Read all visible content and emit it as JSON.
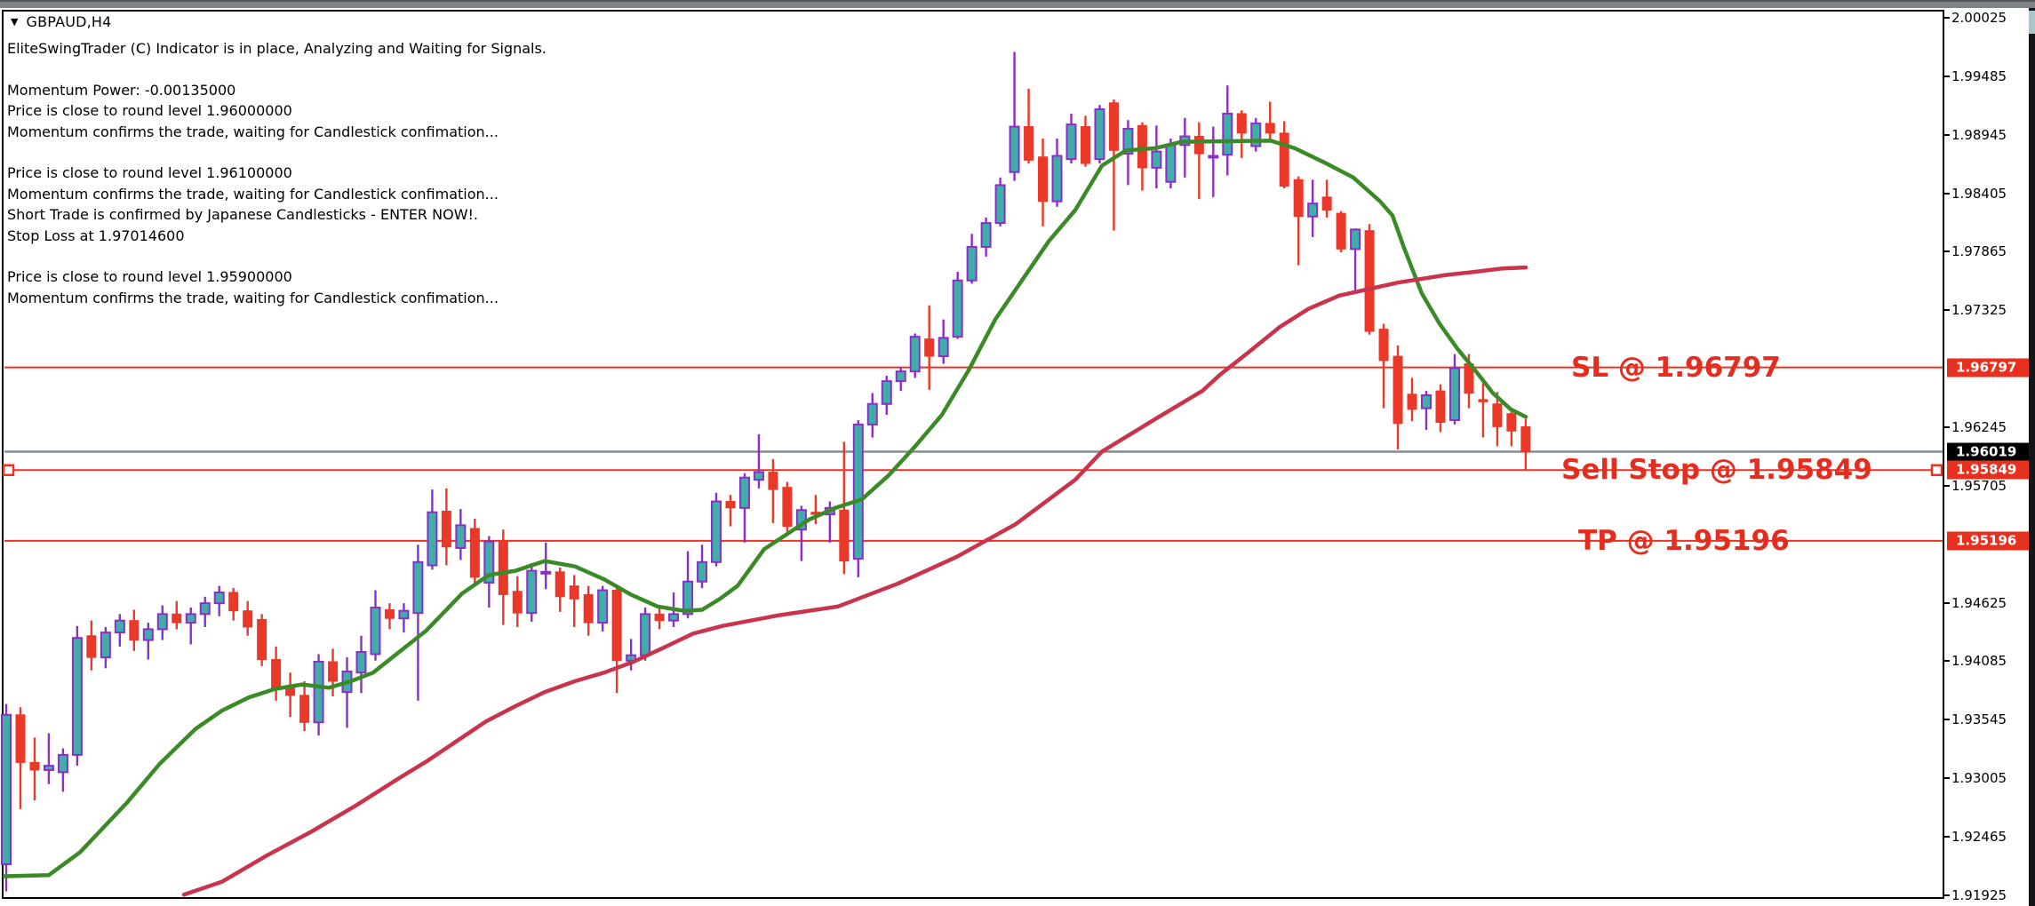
{
  "window": {
    "symbol_label": "GBPAUD,H4",
    "dropdown_icon": "down-triangle-icon"
  },
  "indicator_comment": {
    "lines": [
      "EliteSwingTrader (C) Indicator is in place, Analyzing and Waiting for Signals.",
      "",
      "Momentum Power: -0.00135000",
      "Price is close to round level 1.96000000",
      "Momentum confirms the trade, waiting for Candlestick confimation...",
      "",
      "Price is close to round level 1.96100000",
      "Momentum confirms the trade, waiting for Candlestick confimation...",
      "Short Trade is confirmed by Japanese Candlesticks - ENTER NOW!.",
      "Stop Loss at 1.97014600",
      "",
      "Price is close to round level 1.95900000",
      "Momentum confirms the trade, waiting for Candlestick confimation..."
    ]
  },
  "colors": {
    "bull_fill": "#3fada8",
    "bull_border": "#8b2fc9",
    "bear": "#ea3829",
    "ma_fast": "#3a8b28",
    "ma_slow": "#c9334b",
    "trade_line": "#ee3123",
    "current_price_line": "#7f8d98",
    "badge_red": "#e8301f",
    "badge_black": "#000000",
    "axis_line": "#000000",
    "label_red": "#e42d1e"
  },
  "chart_data": {
    "type": "candlestick",
    "symbol": "GBPAUD",
    "timeframe": "H4",
    "title": "GBPAUD,H4",
    "grid": false,
    "y_axis": {
      "side": "right",
      "min": 1.91925,
      "max": 2.00025,
      "tick_labels": [
        "2.00025",
        "1.99485",
        "1.98945",
        "1.98405",
        "1.97865",
        "1.97325",
        "1.96245",
        "1.95705",
        "1.94625",
        "1.94085",
        "1.93545",
        "1.93005",
        "1.92465",
        "1.91925"
      ]
    },
    "current_price": 1.96019,
    "price_badges": [
      {
        "value": "1.96797",
        "price": 1.96797,
        "type": "red"
      },
      {
        "value": "1.96019",
        "price": 1.96019,
        "type": "black"
      },
      {
        "value": "1.95849",
        "price": 1.95849,
        "type": "red"
      },
      {
        "value": "1.95196",
        "price": 1.95196,
        "type": "red"
      }
    ],
    "h_lines": [
      {
        "name": "stop-loss-line",
        "price": 1.96797,
        "style": "red"
      },
      {
        "name": "current-price-line",
        "price": 1.96019,
        "style": "gray"
      },
      {
        "name": "sell-stop-line",
        "price": 1.95849,
        "style": "red",
        "handles": true
      },
      {
        "name": "take-profit-line",
        "price": 1.95196,
        "style": "red"
      }
    ],
    "trade_labels": [
      {
        "text": "SL @ 1.96797",
        "price": 1.96797,
        "x": 1768,
        "font_px": 31
      },
      {
        "text": "Sell Stop @ 1.95849",
        "price": 1.95849,
        "x": 1757,
        "font_px": 31
      },
      {
        "text": "TP @ 1.95196",
        "price": 1.95196,
        "x": 1776,
        "font_px": 31
      }
    ],
    "candles_ohlc": [
      [
        1.9221,
        1.9369,
        1.9196,
        1.9359
      ],
      [
        1.9359,
        1.9366,
        1.9272,
        1.9315
      ],
      [
        1.9315,
        1.9338,
        1.928,
        1.9308
      ],
      [
        1.9308,
        1.9342,
        1.9295,
        1.9312
      ],
      [
        1.9306,
        1.9328,
        1.9288,
        1.9322
      ],
      [
        1.9322,
        1.9441,
        1.9312,
        1.943
      ],
      [
        1.9432,
        1.9446,
        1.94,
        1.9412
      ],
      [
        1.9412,
        1.944,
        1.9402,
        1.9435
      ],
      [
        1.9435,
        1.9452,
        1.9422,
        1.9446
      ],
      [
        1.9446,
        1.9456,
        1.9418,
        1.9428
      ],
      [
        1.9428,
        1.9444,
        1.941,
        1.9438
      ],
      [
        1.9438,
        1.946,
        1.9428,
        1.9452
      ],
      [
        1.9452,
        1.9464,
        1.9438,
        1.9444
      ],
      [
        1.9444,
        1.9458,
        1.9424,
        1.9452
      ],
      [
        1.9452,
        1.9468,
        1.944,
        1.9462
      ],
      [
        1.9462,
        1.9478,
        1.945,
        1.9472
      ],
      [
        1.9472,
        1.9476,
        1.9446,
        1.9455
      ],
      [
        1.9455,
        1.9464,
        1.9432,
        1.944
      ],
      [
        1.9447,
        1.9452,
        1.9404,
        1.941
      ],
      [
        1.941,
        1.9422,
        1.9372,
        1.9384
      ],
      [
        1.9384,
        1.9398,
        1.9357,
        1.9377
      ],
      [
        1.9377,
        1.939,
        1.9344,
        1.9352
      ],
      [
        1.9352,
        1.9415,
        1.934,
        1.9408
      ],
      [
        1.9408,
        1.942,
        1.9376,
        1.939
      ],
      [
        1.938,
        1.9412,
        1.9347,
        1.9399
      ],
      [
        1.9398,
        1.9432,
        1.9379,
        1.9417
      ],
      [
        1.9415,
        1.9474,
        1.9409,
        1.9458
      ],
      [
        1.9456,
        1.9462,
        1.9438,
        1.9448
      ],
      [
        1.9448,
        1.9462,
        1.9435,
        1.9455
      ],
      [
        1.9453,
        1.9516,
        1.9372,
        1.95
      ],
      [
        1.9497,
        1.9567,
        1.9493,
        1.9546
      ],
      [
        1.9547,
        1.9568,
        1.9497,
        1.9514
      ],
      [
        1.9513,
        1.9549,
        1.9502,
        1.9534
      ],
      [
        1.9531,
        1.954,
        1.948,
        1.9486
      ],
      [
        1.9481,
        1.9524,
        1.9458,
        1.9519
      ],
      [
        1.952,
        1.953,
        1.9442,
        1.947
      ],
      [
        1.9473,
        1.9487,
        1.944,
        1.9453
      ],
      [
        1.9453,
        1.9499,
        1.9445,
        1.9492
      ],
      [
        1.949,
        1.9518,
        1.9475,
        1.9491
      ],
      [
        1.9491,
        1.9495,
        1.9454,
        1.9468
      ],
      [
        1.9478,
        1.9488,
        1.944,
        1.9466
      ],
      [
        1.947,
        1.9478,
        1.9432,
        1.9444
      ],
      [
        1.9444,
        1.9478,
        1.9436,
        1.9474
      ],
      [
        1.9474,
        1.9478,
        1.9379,
        1.9409
      ],
      [
        1.9409,
        1.9429,
        1.94,
        1.9414
      ],
      [
        1.9414,
        1.9458,
        1.9409,
        1.9452
      ],
      [
        1.9452,
        1.946,
        1.9438,
        1.9446
      ],
      [
        1.9446,
        1.9472,
        1.944,
        1.9452
      ],
      [
        1.9452,
        1.951,
        1.9448,
        1.9482
      ],
      [
        1.9482,
        1.9516,
        1.9476,
        1.95
      ],
      [
        1.95,
        1.9564,
        1.9496,
        1.9556
      ],
      [
        1.9556,
        1.9562,
        1.9533,
        1.955
      ],
      [
        1.955,
        1.9582,
        1.9518,
        1.9578
      ],
      [
        1.9576,
        1.9618,
        1.9568,
        1.9583
      ],
      [
        1.9583,
        1.9595,
        1.9536,
        1.9567
      ],
      [
        1.9569,
        1.9574,
        1.9528,
        1.9533
      ],
      [
        1.953,
        1.9552,
        1.9501,
        1.9548
      ],
      [
        1.9546,
        1.9562,
        1.9535,
        1.9544
      ],
      [
        1.9544,
        1.9556,
        1.9518,
        1.955
      ],
      [
        1.9548,
        1.9611,
        1.9489,
        1.9501
      ],
      [
        1.9503,
        1.9631,
        1.9486,
        1.9627
      ],
      [
        1.9627,
        1.9656,
        1.9615,
        1.9646
      ],
      [
        1.9646,
        1.9672,
        1.9636,
        1.9667
      ],
      [
        1.9667,
        1.968,
        1.9658,
        1.9676
      ],
      [
        1.9676,
        1.9711,
        1.967,
        1.9708
      ],
      [
        1.9706,
        1.9737,
        1.9659,
        1.969
      ],
      [
        1.969,
        1.9724,
        1.9683,
        1.9707
      ],
      [
        1.9708,
        1.9768,
        1.9706,
        1.976
      ],
      [
        1.976,
        1.9803,
        1.9757,
        1.9791
      ],
      [
        1.9791,
        1.9818,
        1.9782,
        1.9813
      ],
      [
        1.9813,
        1.9855,
        1.981,
        1.9848
      ],
      [
        1.986,
        1.9971,
        1.9852,
        1.9902
      ],
      [
        1.9902,
        1.9937,
        1.9868,
        1.9871
      ],
      [
        1.9874,
        1.9891,
        1.981,
        1.9833
      ],
      [
        1.9833,
        1.9891,
        1.9828,
        1.9875
      ],
      [
        1.9872,
        1.9914,
        1.9868,
        1.9904
      ],
      [
        1.9902,
        1.9912,
        1.9865,
        1.9868
      ],
      [
        1.9872,
        1.9922,
        1.9868,
        1.9918
      ],
      [
        1.9924,
        1.9927,
        1.9806,
        1.988
      ],
      [
        1.9877,
        1.9908,
        1.9848,
        1.99
      ],
      [
        1.9903,
        1.9906,
        1.9843,
        1.9864
      ],
      [
        1.9864,
        1.9903,
        1.9845,
        1.9879
      ],
      [
        1.9851,
        1.9891,
        1.9845,
        1.9885
      ],
      [
        1.9885,
        1.991,
        1.9855,
        1.9893
      ],
      [
        1.9893,
        1.9906,
        1.9835,
        1.9877
      ],
      [
        1.9875,
        1.9902,
        1.9837,
        1.9875
      ],
      [
        1.9876,
        1.994,
        1.9857,
        1.9914
      ],
      [
        1.9914,
        1.9917,
        1.9873,
        1.9896
      ],
      [
        1.9884,
        1.991,
        1.9879,
        1.9905
      ],
      [
        1.9905,
        1.9925,
        1.9889,
        1.9896
      ],
      [
        1.9896,
        1.9907,
        1.9845,
        1.9847
      ],
      [
        1.9853,
        1.9856,
        1.9774,
        1.9819
      ],
      [
        1.9819,
        1.9853,
        1.98,
        1.9831
      ],
      [
        1.9837,
        1.9853,
        1.9818,
        1.9825
      ],
      [
        1.9822,
        1.9824,
        1.9786,
        1.9789
      ],
      [
        1.9789,
        1.9808,
        1.9751,
        1.9807
      ],
      [
        1.9806,
        1.9812,
        1.971,
        1.9713
      ],
      [
        1.9715,
        1.972,
        1.9642,
        1.9686
      ],
      [
        1.969,
        1.97,
        1.9604,
        1.9628
      ],
      [
        1.9655,
        1.967,
        1.963,
        1.9641
      ],
      [
        1.9642,
        1.9658,
        1.9622,
        1.9654
      ],
      [
        1.9658,
        1.9664,
        1.962,
        1.9629
      ],
      [
        1.9631,
        1.9692,
        1.9627,
        1.9679
      ],
      [
        1.9683,
        1.9692,
        1.9642,
        1.9656
      ],
      [
        1.965,
        1.9665,
        1.9615,
        1.9648
      ],
      [
        1.9646,
        1.9657,
        1.9607,
        1.9625
      ],
      [
        1.9637,
        1.9641,
        1.9607,
        1.9621
      ],
      [
        1.9625,
        1.9632,
        1.9585,
        1.9602
      ]
    ],
    "series": [
      {
        "name": "fast-ma-green",
        "type": "line",
        "points": [
          [
            5,
            1.921
          ],
          [
            55,
            1.9211
          ],
          [
            90,
            1.9232
          ],
          [
            143,
            1.9278
          ],
          [
            180,
            1.9314
          ],
          [
            220,
            1.9346
          ],
          [
            250,
            1.9363
          ],
          [
            280,
            1.9375
          ],
          [
            310,
            1.9383
          ],
          [
            340,
            1.9387
          ],
          [
            370,
            1.9384
          ],
          [
            395,
            1.939
          ],
          [
            420,
            1.9398
          ],
          [
            480,
            1.9437
          ],
          [
            520,
            1.9471
          ],
          [
            550,
            1.9488
          ],
          [
            580,
            1.9492
          ],
          [
            613,
            1.9501
          ],
          [
            647,
            1.9496
          ],
          [
            680,
            1.9484
          ],
          [
            710,
            1.947
          ],
          [
            740,
            1.9459
          ],
          [
            770,
            1.9455
          ],
          [
            790,
            1.9456
          ],
          [
            810,
            1.9466
          ],
          [
            830,
            1.9478
          ],
          [
            860,
            1.9512
          ],
          [
            910,
            1.9539
          ],
          [
            940,
            1.955
          ],
          [
            970,
            1.9558
          ],
          [
            1000,
            1.958
          ],
          [
            1030,
            1.9607
          ],
          [
            1060,
            1.9636
          ],
          [
            1090,
            1.9677
          ],
          [
            1120,
            1.9724
          ],
          [
            1150,
            1.976
          ],
          [
            1180,
            1.9796
          ],
          [
            1210,
            1.9825
          ],
          [
            1240,
            1.9866
          ],
          [
            1267,
            1.988
          ],
          [
            1300,
            1.9882
          ],
          [
            1330,
            1.9888
          ],
          [
            1430,
            1.9889
          ],
          [
            1457,
            1.9882
          ],
          [
            1490,
            1.9869
          ],
          [
            1523,
            1.9855
          ],
          [
            1553,
            1.9833
          ],
          [
            1567,
            1.982
          ],
          [
            1580,
            1.979
          ],
          [
            1600,
            1.9748
          ],
          [
            1620,
            1.972
          ],
          [
            1640,
            1.9697
          ],
          [
            1660,
            1.9677
          ],
          [
            1680,
            1.9656
          ],
          [
            1700,
            1.9641
          ],
          [
            1717,
            1.9634
          ]
        ]
      },
      {
        "name": "slow-ma-crimson",
        "type": "line",
        "points": [
          [
            207,
            1.9193
          ],
          [
            250,
            1.9205
          ],
          [
            300,
            1.9229
          ],
          [
            350,
            1.9251
          ],
          [
            400,
            1.9275
          ],
          [
            450,
            1.9301
          ],
          [
            480,
            1.9316
          ],
          [
            547,
            1.9353
          ],
          [
            580,
            1.9367
          ],
          [
            613,
            1.938
          ],
          [
            647,
            1.939
          ],
          [
            680,
            1.9398
          ],
          [
            713,
            1.9408
          ],
          [
            747,
            1.9421
          ],
          [
            780,
            1.9434
          ],
          [
            813,
            1.9441
          ],
          [
            877,
            1.9451
          ],
          [
            943,
            1.9459
          ],
          [
            1010,
            1.948
          ],
          [
            1077,
            1.9505
          ],
          [
            1143,
            1.9535
          ],
          [
            1210,
            1.9576
          ],
          [
            1240,
            1.9602
          ],
          [
            1300,
            1.9632
          ],
          [
            1353,
            1.9658
          ],
          [
            1373,
            1.9673
          ],
          [
            1407,
            1.9695
          ],
          [
            1440,
            1.9717
          ],
          [
            1473,
            1.9734
          ],
          [
            1507,
            1.9746
          ],
          [
            1540,
            1.9752
          ],
          [
            1573,
            1.9758
          ],
          [
            1627,
            1.9765
          ],
          [
            1660,
            1.9768
          ],
          [
            1690,
            1.9771
          ],
          [
            1717,
            1.9772
          ]
        ]
      }
    ]
  }
}
